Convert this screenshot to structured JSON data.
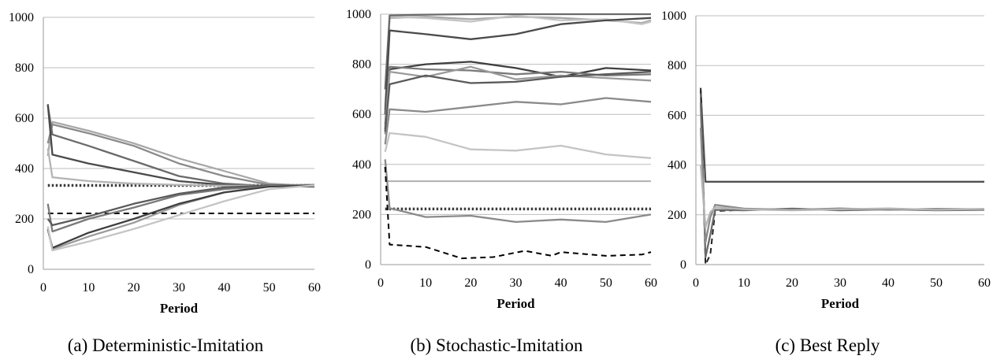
{
  "figure": {
    "panels": [
      {
        "id": "a",
        "caption": "(a) Deterministic-Imitation"
      },
      {
        "id": "b",
        "caption": "(b) Stochastic-Imitation"
      },
      {
        "id": "c",
        "caption": "(c) Best Reply"
      }
    ]
  },
  "chart_data": [
    {
      "type": "line",
      "title": "",
      "xlabel": "Period",
      "ylabel": "",
      "xlim": [
        0,
        60
      ],
      "ylim": [
        0,
        1000
      ],
      "xticks": [
        "0",
        "10",
        "20",
        "30",
        "40",
        "50",
        "60"
      ],
      "yticks": [
        "0",
        "200",
        "400",
        "600",
        "800",
        "1000"
      ],
      "grid": "horizontal",
      "reference_lines": [
        {
          "style": "dotted",
          "color": "#3a3a3a",
          "y": 333
        },
        {
          "style": "dashed",
          "color": "#000000",
          "y": 222
        }
      ],
      "series": [
        {
          "color": "#a8a8a8",
          "points": [
            [
              1,
              450
            ],
            [
              2,
              585
            ],
            [
              10,
              550
            ],
            [
              20,
              500
            ],
            [
              30,
              440
            ],
            [
              40,
              390
            ],
            [
              50,
              340
            ],
            [
              60,
              330
            ]
          ]
        },
        {
          "color": "#8a8a8a",
          "points": [
            [
              1,
              500
            ],
            [
              2,
              575
            ],
            [
              10,
              540
            ],
            [
              20,
              490
            ],
            [
              30,
              420
            ],
            [
              40,
              370
            ],
            [
              50,
              335
            ],
            [
              60,
              330
            ]
          ]
        },
        {
          "color": "#6a6a6a",
          "points": [
            [
              1,
              650
            ],
            [
              2,
              535
            ],
            [
              10,
              490
            ],
            [
              20,
              430
            ],
            [
              30,
              370
            ],
            [
              40,
              340
            ],
            [
              50,
              330
            ],
            [
              60,
              330
            ]
          ]
        },
        {
          "color": "#4a4a4a",
          "points": [
            [
              1,
              655
            ],
            [
              2,
              455
            ],
            [
              10,
              420
            ],
            [
              20,
              385
            ],
            [
              30,
              350
            ],
            [
              40,
              335
            ],
            [
              50,
              330
            ],
            [
              60,
              328
            ]
          ]
        },
        {
          "color": "#b5b5b5",
          "points": [
            [
              1,
              480
            ],
            [
              2,
              365
            ],
            [
              10,
              350
            ],
            [
              20,
              340
            ],
            [
              30,
              335
            ],
            [
              40,
              332
            ],
            [
              50,
              332
            ],
            [
              60,
              332
            ]
          ]
        },
        {
          "color": "#7a7a7a",
          "points": [
            [
              1,
              260
            ],
            [
              2,
              150
            ],
            [
              10,
              200
            ],
            [
              20,
              245
            ],
            [
              30,
              295
            ],
            [
              40,
              318
            ],
            [
              50,
              330
            ],
            [
              60,
              333
            ]
          ]
        },
        {
          "color": "#5a5a5a",
          "points": [
            [
              1,
              200
            ],
            [
              2,
              175
            ],
            [
              10,
              210
            ],
            [
              20,
              260
            ],
            [
              30,
              300
            ],
            [
              40,
              325
            ],
            [
              50,
              333
            ],
            [
              60,
              335
            ]
          ]
        },
        {
          "color": "#9a9a9a",
          "points": [
            [
              1,
              160
            ],
            [
              2,
              80
            ],
            [
              10,
              130
            ],
            [
              20,
              185
            ],
            [
              30,
              255
            ],
            [
              40,
              305
            ],
            [
              50,
              330
            ],
            [
              60,
              335
            ]
          ]
        },
        {
          "color": "#3f3f3f",
          "points": [
            [
              1,
              160
            ],
            [
              2,
              85
            ],
            [
              10,
              145
            ],
            [
              20,
              200
            ],
            [
              30,
              260
            ],
            [
              40,
              305
            ],
            [
              50,
              328
            ],
            [
              60,
              333
            ]
          ]
        },
        {
          "color": "#c4c4c4",
          "points": [
            [
              1,
              170
            ],
            [
              2,
              75
            ],
            [
              10,
              110
            ],
            [
              20,
              160
            ],
            [
              30,
              215
            ],
            [
              40,
              270
            ],
            [
              50,
              318
            ],
            [
              60,
              333
            ]
          ]
        }
      ]
    },
    {
      "type": "line",
      "title": "",
      "xlabel": "Period",
      "ylabel": "",
      "xlim": [
        0,
        60
      ],
      "ylim": [
        0,
        1000
      ],
      "xticks": [
        "0",
        "10",
        "20",
        "30",
        "40",
        "50",
        "60"
      ],
      "yticks": [
        "0",
        "200",
        "400",
        "600",
        "800",
        "1000"
      ],
      "grid": "horizontal",
      "reference_lines": [
        {
          "style": "solid",
          "color": "#b0b0b0",
          "y": 333
        },
        {
          "style": "dotted",
          "color": "#3a3a3a",
          "y": 222
        }
      ],
      "series": [
        {
          "color": "#a8a8a8",
          "points": [
            [
              1,
              620
            ],
            [
              2,
              985
            ],
            [
              10,
              990
            ],
            [
              20,
              980
            ],
            [
              30,
              990
            ],
            [
              40,
              985
            ],
            [
              50,
              975
            ],
            [
              58,
              965
            ],
            [
              60,
              975
            ]
          ]
        },
        {
          "color": "#c4c4c4",
          "points": [
            [
              1,
              640
            ],
            [
              2,
              990
            ],
            [
              10,
              985
            ],
            [
              20,
              970
            ],
            [
              30,
              995
            ],
            [
              40,
              975
            ],
            [
              50,
              980
            ],
            [
              58,
              960
            ],
            [
              60,
              970
            ]
          ]
        },
        {
          "color": "#6a6a6a",
          "points": [
            [
              1,
              700
            ],
            [
              2,
              995
            ],
            [
              10,
              998
            ],
            [
              20,
              1000
            ],
            [
              30,
              1000
            ],
            [
              40,
              1000
            ],
            [
              50,
              1000
            ],
            [
              60,
              1000
            ]
          ]
        },
        {
          "color": "#4a4a4a",
          "points": [
            [
              1,
              600
            ],
            [
              2,
              935
            ],
            [
              10,
              920
            ],
            [
              20,
              900
            ],
            [
              30,
              920
            ],
            [
              40,
              960
            ],
            [
              50,
              975
            ],
            [
              60,
              985
            ]
          ]
        },
        {
          "color": "#3f3f3f",
          "points": [
            [
              1,
              540
            ],
            [
              2,
              780
            ],
            [
              10,
              800
            ],
            [
              20,
              810
            ],
            [
              30,
              785
            ],
            [
              40,
              750
            ],
            [
              50,
              785
            ],
            [
              60,
              775
            ]
          ]
        },
        {
          "color": "#7a7a7a",
          "points": [
            [
              1,
              560
            ],
            [
              2,
              790
            ],
            [
              10,
              780
            ],
            [
              20,
              775
            ],
            [
              30,
              760
            ],
            [
              40,
              770
            ],
            [
              50,
              755
            ],
            [
              60,
              760
            ]
          ]
        },
        {
          "color": "#9a9a9a",
          "points": [
            [
              1,
              520
            ],
            [
              2,
              770
            ],
            [
              10,
              750
            ],
            [
              20,
              790
            ],
            [
              30,
              740
            ],
            [
              40,
              755
            ],
            [
              50,
              745
            ],
            [
              60,
              735
            ]
          ]
        },
        {
          "color": "#5a5a5a",
          "points": [
            [
              1,
              530
            ],
            [
              2,
              720
            ],
            [
              10,
              755
            ],
            [
              20,
              725
            ],
            [
              30,
              730
            ],
            [
              40,
              750
            ],
            [
              50,
              760
            ],
            [
              60,
              770
            ]
          ]
        },
        {
          "color": "#8a8a8a",
          "points": [
            [
              1,
              480
            ],
            [
              2,
              620
            ],
            [
              10,
              610
            ],
            [
              20,
              630
            ],
            [
              30,
              650
            ],
            [
              40,
              640
            ],
            [
              50,
              665
            ],
            [
              60,
              650
            ]
          ]
        },
        {
          "color": "#c4c4c4",
          "points": [
            [
              1,
              450
            ],
            [
              2,
              525
            ],
            [
              10,
              510
            ],
            [
              20,
              460
            ],
            [
              30,
              455
            ],
            [
              40,
              475
            ],
            [
              50,
              440
            ],
            [
              60,
              425
            ]
          ]
        },
        {
          "color": "#8a8a8a",
          "points": [
            [
              1,
              420
            ],
            [
              2,
              225
            ],
            [
              10,
              190
            ],
            [
              20,
              195
            ],
            [
              30,
              170
            ],
            [
              40,
              180
            ],
            [
              50,
              170
            ],
            [
              60,
              200
            ]
          ]
        },
        {
          "color": "#000000",
          "dashed": true,
          "points": [
            [
              1,
              390
            ],
            [
              2,
              80
            ],
            [
              10,
              70
            ],
            [
              18,
              25
            ],
            [
              25,
              30
            ],
            [
              32,
              55
            ],
            [
              38,
              35
            ],
            [
              40,
              50
            ],
            [
              50,
              35
            ],
            [
              58,
              40
            ],
            [
              60,
              50
            ]
          ]
        }
      ]
    },
    {
      "type": "line",
      "title": "",
      "xlabel": "Period",
      "ylabel": "",
      "xlim": [
        0,
        60
      ],
      "ylim": [
        0,
        1000
      ],
      "xticks": [
        "0",
        "10",
        "20",
        "30",
        "40",
        "50",
        "60"
      ],
      "yticks": [
        "0",
        "200",
        "400",
        "600",
        "800",
        "1000"
      ],
      "grid": "horizontal",
      "reference_lines": [],
      "series": [
        {
          "color": "#505050",
          "points": [
            [
              1,
              700
            ],
            [
              2,
              333
            ],
            [
              10,
              333
            ],
            [
              20,
              333
            ],
            [
              30,
              333
            ],
            [
              40,
              333
            ],
            [
              50,
              333
            ],
            [
              60,
              333
            ]
          ]
        },
        {
          "color": "#222222",
          "dashed": true,
          "points": [
            [
              1,
              710
            ],
            [
              2,
              0
            ],
            [
              3,
              40
            ],
            [
              4,
              215
            ],
            [
              10,
              220
            ],
            [
              20,
              222
            ],
            [
              30,
              220
            ],
            [
              40,
              224
            ],
            [
              50,
              222
            ],
            [
              60,
              223
            ]
          ]
        },
        {
          "color": "#6a6a6a",
          "points": [
            [
              1,
              650
            ],
            [
              2,
              30
            ],
            [
              3,
              120
            ],
            [
              4,
              220
            ],
            [
              10,
              218
            ],
            [
              20,
              225
            ],
            [
              30,
              218
            ],
            [
              40,
              222
            ],
            [
              50,
              218
            ],
            [
              60,
              220
            ]
          ]
        },
        {
          "color": "#8a8a8a",
          "points": [
            [
              1,
              550
            ],
            [
              2,
              90
            ],
            [
              3,
              190
            ],
            [
              4,
              240
            ],
            [
              10,
              225
            ],
            [
              20,
              220
            ],
            [
              30,
              226
            ],
            [
              40,
              220
            ],
            [
              50,
              224
            ],
            [
              60,
              222
            ]
          ]
        },
        {
          "color": "#b5b5b5",
          "points": [
            [
              1,
              400
            ],
            [
              2,
              150
            ],
            [
              3,
              210
            ],
            [
              4,
              230
            ],
            [
              10,
              222
            ],
            [
              20,
              218
            ],
            [
              30,
              222
            ],
            [
              40,
              226
            ],
            [
              50,
              220
            ],
            [
              60,
              224
            ]
          ]
        }
      ]
    }
  ]
}
